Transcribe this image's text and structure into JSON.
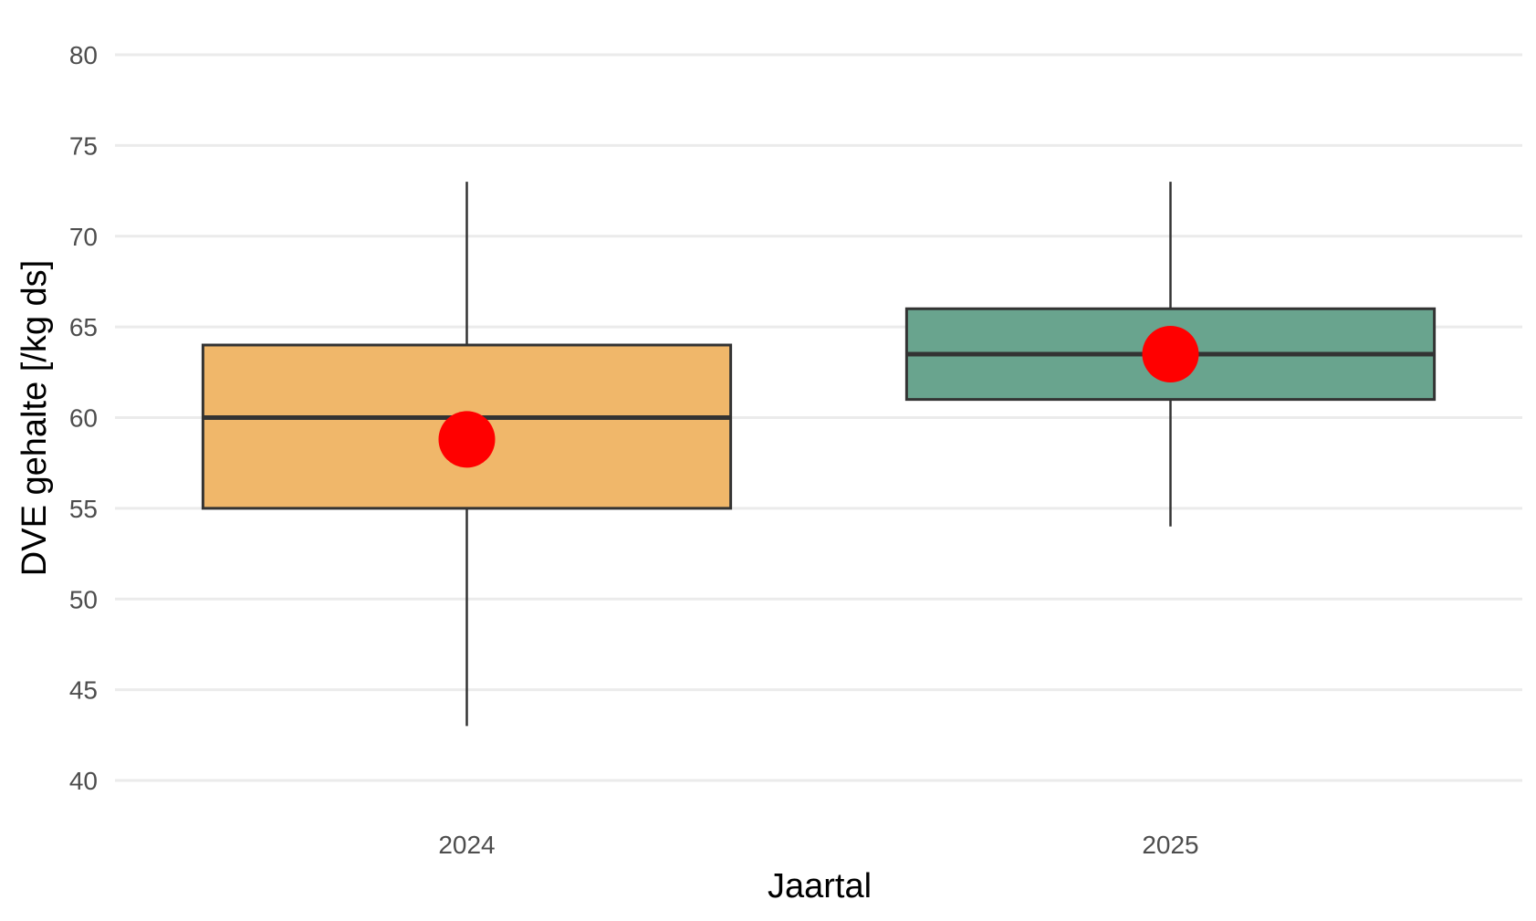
{
  "chart_data": {
    "type": "boxplot",
    "title": "",
    "xlabel": "Jaartal",
    "ylabel": "DVE gehalte [/kg ds]",
    "ylim": [
      40,
      80
    ],
    "yticks": [
      "40",
      "45",
      "50",
      "55",
      "60",
      "65",
      "70",
      "75",
      "80"
    ],
    "grid": true,
    "legend": "none",
    "categories": [
      "2024",
      "2025"
    ],
    "boxes": [
      {
        "category": "2024",
        "min": 43,
        "q1": 55,
        "median": 60,
        "q3": 64,
        "max": 73,
        "mean": 58.8,
        "color": "#f0b76a"
      },
      {
        "category": "2025",
        "min": 54,
        "q1": 61,
        "median": 63.5,
        "q3": 66,
        "max": 73,
        "mean": 63.5,
        "color": "#69a48e"
      }
    ],
    "mean_marker_color": "#ff0000"
  }
}
